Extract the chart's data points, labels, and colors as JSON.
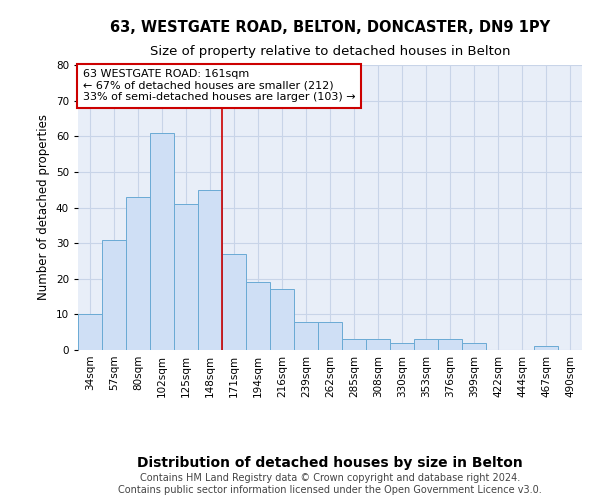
{
  "title1": "63, WESTGATE ROAD, BELTON, DONCASTER, DN9 1PY",
  "title2": "Size of property relative to detached houses in Belton",
  "xlabel": "Distribution of detached houses by size in Belton",
  "ylabel": "Number of detached properties",
  "categories": [
    "34sqm",
    "57sqm",
    "80sqm",
    "102sqm",
    "125sqm",
    "148sqm",
    "171sqm",
    "194sqm",
    "216sqm",
    "239sqm",
    "262sqm",
    "285sqm",
    "308sqm",
    "330sqm",
    "353sqm",
    "376sqm",
    "399sqm",
    "422sqm",
    "444sqm",
    "467sqm",
    "490sqm"
  ],
  "values": [
    10,
    31,
    43,
    61,
    41,
    45,
    27,
    19,
    17,
    8,
    8,
    3,
    3,
    2,
    3,
    3,
    2,
    0,
    0,
    1,
    0
  ],
  "bar_color": "#cfdff5",
  "bar_edge_color": "#6aaad4",
  "grid_color": "#c8d4e8",
  "background_color": "#e8eef8",
  "ref_line_x": 5.5,
  "ref_line_color": "#cc0000",
  "annotation_line1": "63 WESTGATE ROAD: 161sqm",
  "annotation_line2": "← 67% of detached houses are smaller (212)",
  "annotation_line3": "33% of semi-detached houses are larger (103) →",
  "annotation_box_color": "#cc0000",
  "ylim": [
    0,
    80
  ],
  "yticks": [
    0,
    10,
    20,
    30,
    40,
    50,
    60,
    70,
    80
  ],
  "footer": "Contains HM Land Registry data © Crown copyright and database right 2024.\nContains public sector information licensed under the Open Government Licence v3.0.",
  "title_fontsize": 10.5,
  "subtitle_fontsize": 9.5,
  "xlabel_fontsize": 10,
  "ylabel_fontsize": 8.5,
  "tick_fontsize": 7.5,
  "annotation_fontsize": 8,
  "footer_fontsize": 7
}
